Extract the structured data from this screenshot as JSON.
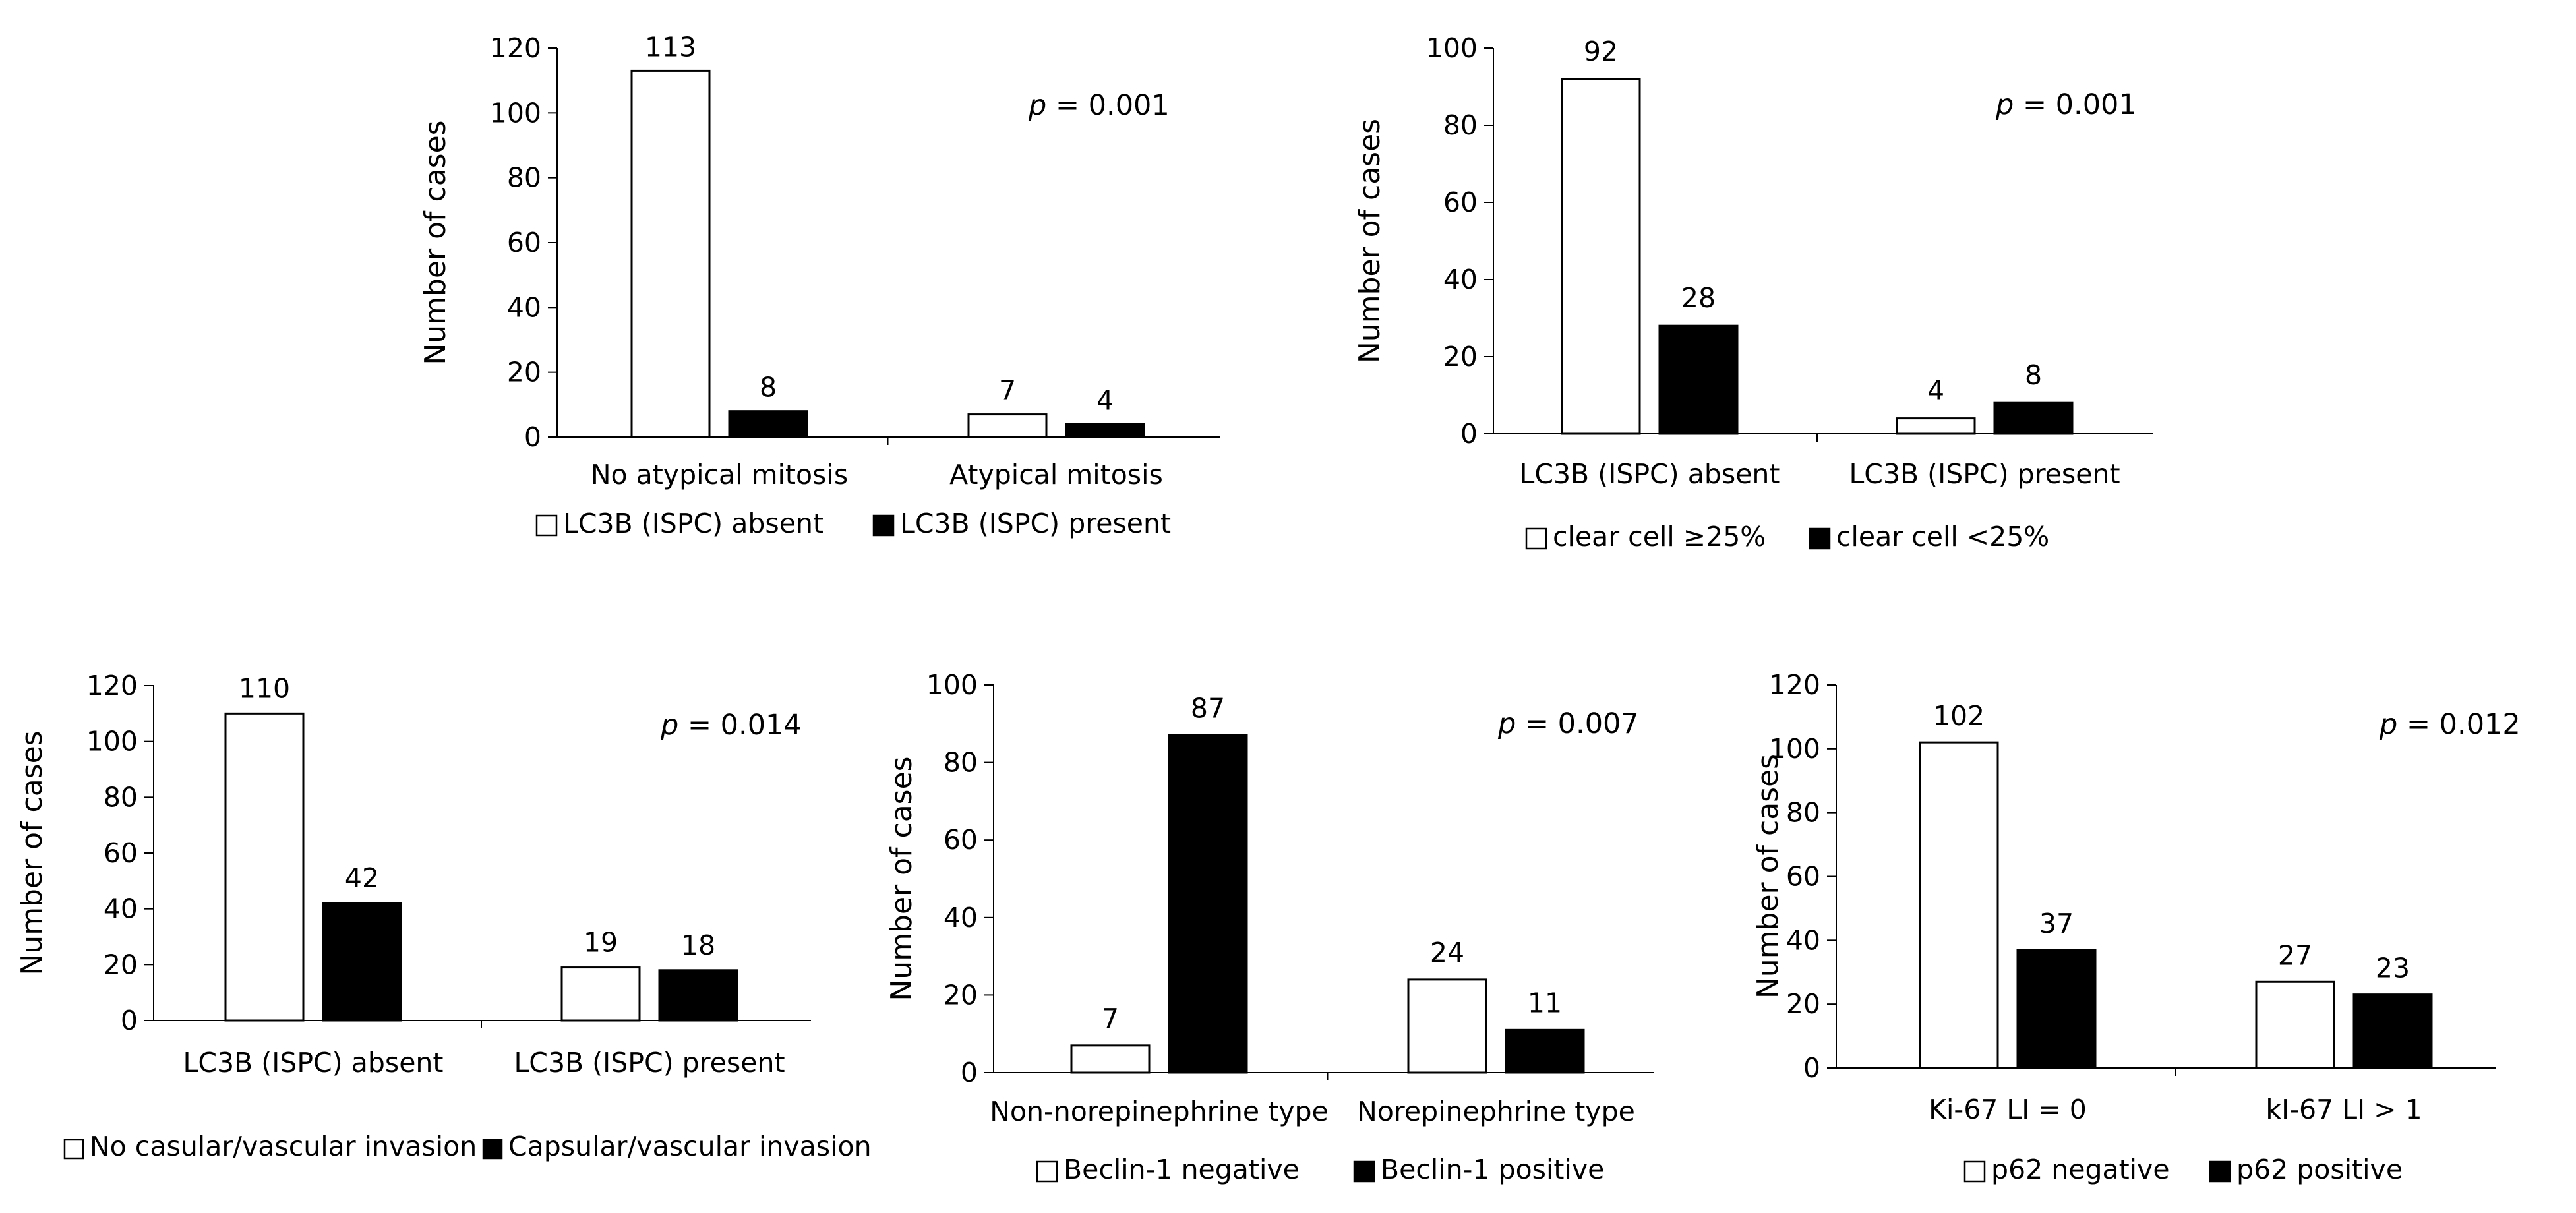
{
  "chart_data": [
    {
      "type": "bar",
      "title": "",
      "xlabel": "",
      "ylabel": "Number of cases",
      "ylim": [
        0,
        120
      ],
      "yticks": [
        0,
        20,
        40,
        60,
        80,
        100,
        120
      ],
      "categories": [
        "No atypical mitosis",
        "Atypical mitosis"
      ],
      "series": [
        {
          "name": "LC3B (ISPC) absent",
          "values": [
            113,
            7
          ],
          "color": "#ffffff"
        },
        {
          "name": "LC3B (ISPC) present",
          "values": [
            8,
            4
          ],
          "color": "#000000"
        }
      ],
      "annotation": {
        "p_symbol": "p",
        "p_text": "= 0.001"
      },
      "legend_position": "bottom"
    },
    {
      "type": "bar",
      "title": "",
      "xlabel": "",
      "ylabel": "Number of cases",
      "ylim": [
        0,
        100
      ],
      "yticks": [
        0,
        20,
        40,
        60,
        80,
        100
      ],
      "categories": [
        "LC3B (ISPC) absent",
        "LC3B (ISPC) present"
      ],
      "series": [
        {
          "name": "clear cell ≥25%",
          "values": [
            92,
            4
          ],
          "color": "#ffffff"
        },
        {
          "name": "clear cell <25%",
          "values": [
            28,
            8
          ],
          "color": "#000000"
        }
      ],
      "annotation": {
        "p_symbol": "p",
        "p_text": "= 0.001"
      },
      "legend_position": "bottom"
    },
    {
      "type": "bar",
      "title": "",
      "xlabel": "",
      "ylabel": "Number of cases",
      "ylim": [
        0,
        120
      ],
      "yticks": [
        0,
        20,
        40,
        60,
        80,
        100,
        120
      ],
      "categories": [
        "LC3B (ISPC) absent",
        "LC3B (ISPC) present"
      ],
      "series": [
        {
          "name": "No casular/vascular invasion",
          "values": [
            110,
            19
          ],
          "color": "#ffffff"
        },
        {
          "name": "Capsular/vascular invasion",
          "values": [
            42,
            18
          ],
          "color": "#000000"
        }
      ],
      "annotation": {
        "p_symbol": "p",
        "p_text": "= 0.014"
      },
      "legend_position": "bottom"
    },
    {
      "type": "bar",
      "title": "",
      "xlabel": "",
      "ylabel": "Number of cases",
      "ylim": [
        0,
        100
      ],
      "yticks": [
        0,
        20,
        40,
        60,
        80,
        100
      ],
      "categories": [
        "Non-norepinephrine type",
        "Norepinephrine type"
      ],
      "series": [
        {
          "name": "Beclin-1 negative",
          "values": [
            7,
            24
          ],
          "color": "#ffffff"
        },
        {
          "name": "Beclin-1 positive",
          "values": [
            87,
            11
          ],
          "color": "#000000"
        }
      ],
      "annotation": {
        "p_symbol": "p",
        "p_text": "= 0.007"
      },
      "legend_position": "bottom"
    },
    {
      "type": "bar",
      "title": "",
      "xlabel": "",
      "ylabel": "Number of cases",
      "ylim": [
        0,
        120
      ],
      "yticks": [
        0,
        20,
        40,
        60,
        80,
        100,
        120
      ],
      "categories": [
        "Ki-67 LI = 0",
        "kI-67 LI > 1"
      ],
      "series": [
        {
          "name": "p62 negative",
          "values": [
            102,
            27
          ],
          "color": "#ffffff"
        },
        {
          "name": "p62 positive",
          "values": [
            37,
            23
          ],
          "color": "#000000"
        }
      ],
      "annotation": {
        "p_symbol": "p",
        "p_text": "= 0.012"
      },
      "legend_position": "bottom"
    }
  ]
}
